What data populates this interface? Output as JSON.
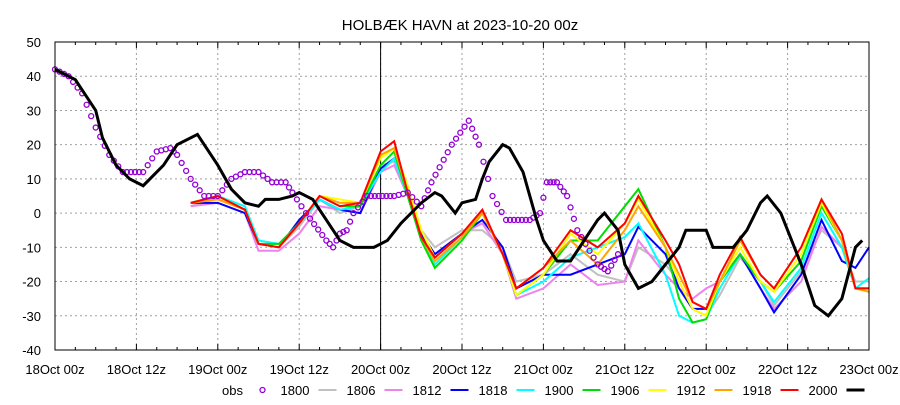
{
  "chart_data": {
    "type": "line",
    "title": "HOLBÆK HAVN at 2023-10-20 00z",
    "xlabel": "",
    "ylabel": "",
    "ylim": [
      -40,
      50
    ],
    "yticks": [
      -40,
      -30,
      -20,
      -10,
      0,
      10,
      20,
      30,
      40,
      50
    ],
    "x_unit": "hours since 18Oct 00z",
    "xlim": [
      0,
      120
    ],
    "xticks": [
      {
        "h": 0,
        "label": "18Oct 00z"
      },
      {
        "h": 12,
        "label": "18Oct 12z"
      },
      {
        "h": 24,
        "label": "19Oct 00z"
      },
      {
        "h": 36,
        "label": "19Oct 12z"
      },
      {
        "h": 48,
        "label": "20Oct 00z"
      },
      {
        "h": 60,
        "label": "20Oct 12z"
      },
      {
        "h": 72,
        "label": "21Oct 00z"
      },
      {
        "h": 84,
        "label": "21Oct 12z"
      },
      {
        "h": 96,
        "label": "22Oct 00z"
      },
      {
        "h": 108,
        "label": "22Oct 12z"
      },
      {
        "h": 120,
        "label": "23Oct 00z"
      }
    ],
    "grid": true,
    "analysis_time_hour": 48,
    "legend_position": "bottom",
    "colored_x": [
      20,
      24,
      28,
      30,
      33,
      36,
      39,
      42,
      45,
      48,
      50,
      52,
      54,
      56,
      60,
      63,
      66,
      68,
      72,
      76,
      80,
      84,
      86,
      90,
      92,
      94,
      96,
      98,
      101,
      104,
      106,
      110,
      113,
      116,
      118,
      120
    ],
    "series": [
      {
        "name": "obs",
        "color": "#9400d3",
        "style": "circles",
        "points": [
          [
            0,
            42
          ],
          [
            2,
            40
          ],
          [
            4,
            35
          ],
          [
            6,
            25
          ],
          [
            8,
            17
          ],
          [
            10,
            12
          ],
          [
            13,
            12
          ],
          [
            15,
            18
          ],
          [
            17,
            19
          ],
          [
            18,
            17
          ],
          [
            20,
            10
          ],
          [
            22,
            5
          ],
          [
            24,
            5
          ],
          [
            26,
            10
          ],
          [
            28,
            12
          ],
          [
            30,
            12
          ],
          [
            32,
            9
          ],
          [
            34,
            9
          ],
          [
            35,
            6
          ],
          [
            37,
            0
          ],
          [
            40,
            -8
          ],
          [
            41,
            -10
          ],
          [
            42,
            -6
          ],
          [
            43,
            -5
          ],
          [
            44,
            0
          ],
          [
            46,
            5
          ],
          [
            50,
            5
          ],
          [
            52,
            6
          ],
          [
            54,
            2
          ],
          [
            55.5,
            9
          ],
          [
            58.5,
            20
          ],
          [
            61,
            27
          ],
          [
            62.5,
            20
          ],
          [
            64.5,
            5
          ],
          [
            66.5,
            -2
          ],
          [
            70,
            -2
          ],
          [
            71.5,
            0
          ],
          [
            72.5,
            9
          ],
          [
            74,
            9
          ],
          [
            75.5,
            5
          ],
          [
            77,
            -5
          ],
          [
            80,
            -15
          ],
          [
            81.5,
            -17
          ],
          [
            83,
            -12
          ],
          [
            72,
            -6
          ]
        ]
      },
      {
        "name": "1800",
        "color": "#c0c0c0",
        "values": [
          2,
          5,
          1,
          -9,
          -10,
          -4,
          4,
          0,
          2,
          14,
          15,
          5,
          -5,
          -10,
          -5,
          -5,
          -10,
          -20,
          -18,
          -12,
          -18,
          -20,
          -10,
          -15,
          -20,
          -28,
          -30,
          -24,
          -13,
          -20,
          -27,
          -17,
          -5,
          -10,
          -20,
          -20
        ]
      },
      {
        "name": "1806",
        "color": "#ee82ee",
        "values": [
          2,
          3,
          0,
          -11,
          -11,
          -6,
          2,
          1,
          0,
          12,
          14,
          5,
          -8,
          -12,
          -6,
          -3,
          -12,
          -25,
          -22,
          -15,
          -21,
          -20,
          -8,
          -18,
          -22,
          -25,
          -22,
          -20,
          -12,
          -22,
          -28,
          -20,
          -4,
          -10,
          -22,
          -22
        ]
      },
      {
        "name": "1812",
        "color": "#0000ff",
        "values": [
          3,
          3,
          0,
          -9,
          -10,
          -2,
          4,
          1,
          0,
          13,
          16,
          6,
          -6,
          -12,
          -6,
          -2,
          -10,
          -22,
          -18,
          -18,
          -15,
          -12,
          -4,
          -12,
          -22,
          -28,
          -28,
          -20,
          -12,
          -22,
          -29,
          -18,
          -2,
          -14,
          -16,
          -10
        ]
      },
      {
        "name": "1818",
        "color": "#00ffff",
        "values": [
          3,
          5,
          2,
          -8,
          -9,
          -3,
          4,
          1,
          2,
          12,
          16,
          5,
          -8,
          -15,
          -7,
          0,
          -12,
          -24,
          -20,
          -13,
          -10,
          -7,
          -3,
          -18,
          -30,
          -32,
          -31,
          -22,
          -12,
          -20,
          -26,
          -16,
          0,
          -10,
          -22,
          -19
        ]
      },
      {
        "name": "1900",
        "color": "#00dd00",
        "values": [
          3,
          5,
          1,
          -9,
          -9,
          -3,
          5,
          2,
          2,
          14,
          18,
          5,
          -8,
          -16,
          -8,
          0,
          -12,
          -24,
          -18,
          -8,
          -8,
          2,
          7,
          -10,
          -25,
          -32,
          -31,
          -20,
          -12,
          -20,
          -23,
          -14,
          2,
          -8,
          -22,
          -22
        ]
      },
      {
        "name": "1906",
        "color": "#ffff00",
        "values": [
          3,
          5,
          1,
          -9,
          -10,
          -3,
          5,
          4,
          3,
          16,
          19,
          8,
          -5,
          -13,
          -6,
          0,
          -12,
          -24,
          -18,
          -6,
          -12,
          -3,
          4,
          -10,
          -20,
          -28,
          -30,
          -20,
          -10,
          -20,
          -23,
          -12,
          3,
          -8,
          -22,
          -23
        ]
      },
      {
        "name": "1912",
        "color": "#ffa500",
        "values": [
          3,
          4,
          1,
          -9,
          -10,
          -3,
          5,
          3,
          3,
          17,
          19,
          6,
          -7,
          -14,
          -7,
          0,
          -12,
          -22,
          -16,
          -8,
          -15,
          -5,
          2,
          -10,
          -18,
          -26,
          -28,
          -20,
          -8,
          -18,
          -22,
          -10,
          4,
          -8,
          -22,
          -23
        ]
      },
      {
        "name": "1918",
        "color": "#ff0000",
        "values": [
          3,
          5,
          1,
          -9,
          -10,
          -3,
          5,
          2,
          3,
          18,
          21,
          6,
          -7,
          -13,
          -6,
          1,
          -12,
          -22,
          -16,
          -5,
          -10,
          -3,
          5,
          -8,
          -15,
          -26,
          -28,
          -18,
          -7,
          -18,
          -22,
          -10,
          4,
          -6,
          -22,
          -22
        ]
      },
      {
        "name": "2000",
        "color": "#000000",
        "points": [
          [
            0,
            42
          ],
          [
            3,
            39
          ],
          [
            6,
            30
          ],
          [
            7,
            22
          ],
          [
            9,
            14
          ],
          [
            11,
            10
          ],
          [
            13,
            8
          ],
          [
            16,
            14
          ],
          [
            18,
            20
          ],
          [
            21,
            23
          ],
          [
            22,
            20
          ],
          [
            24,
            14
          ],
          [
            26,
            7
          ],
          [
            28,
            3
          ],
          [
            30,
            2
          ],
          [
            31,
            4
          ],
          [
            33,
            4
          ],
          [
            35,
            5
          ],
          [
            36,
            6
          ],
          [
            38,
            4
          ],
          [
            40,
            -2
          ],
          [
            42,
            -8
          ],
          [
            44,
            -10
          ],
          [
            47,
            -10
          ],
          [
            49,
            -8
          ],
          [
            51,
            -3
          ],
          [
            54,
            3
          ],
          [
            56,
            6
          ],
          [
            57,
            5
          ],
          [
            59,
            0
          ],
          [
            60,
            3
          ],
          [
            62,
            4
          ],
          [
            63,
            10
          ],
          [
            64,
            15
          ],
          [
            66,
            20
          ],
          [
            67,
            19
          ],
          [
            69,
            12
          ],
          [
            71,
            -2
          ],
          [
            72,
            -8
          ],
          [
            74,
            -14
          ],
          [
            76,
            -14
          ],
          [
            78,
            -8
          ],
          [
            80,
            -2
          ],
          [
            81,
            0
          ],
          [
            83,
            -5
          ],
          [
            84,
            -15
          ],
          [
            86,
            -22
          ],
          [
            88,
            -20
          ],
          [
            90,
            -15
          ],
          [
            92,
            -10
          ],
          [
            93,
            -5
          ],
          [
            96,
            -5
          ],
          [
            97,
            -10
          ],
          [
            100,
            -10
          ],
          [
            102,
            -5
          ],
          [
            104,
            3
          ],
          [
            105,
            5
          ],
          [
            107,
            0
          ],
          [
            110,
            -15
          ],
          [
            112,
            -27
          ],
          [
            114,
            -30
          ],
          [
            116,
            -25
          ],
          [
            118,
            -10
          ],
          [
            119,
            -8
          ]
        ]
      }
    ]
  }
}
